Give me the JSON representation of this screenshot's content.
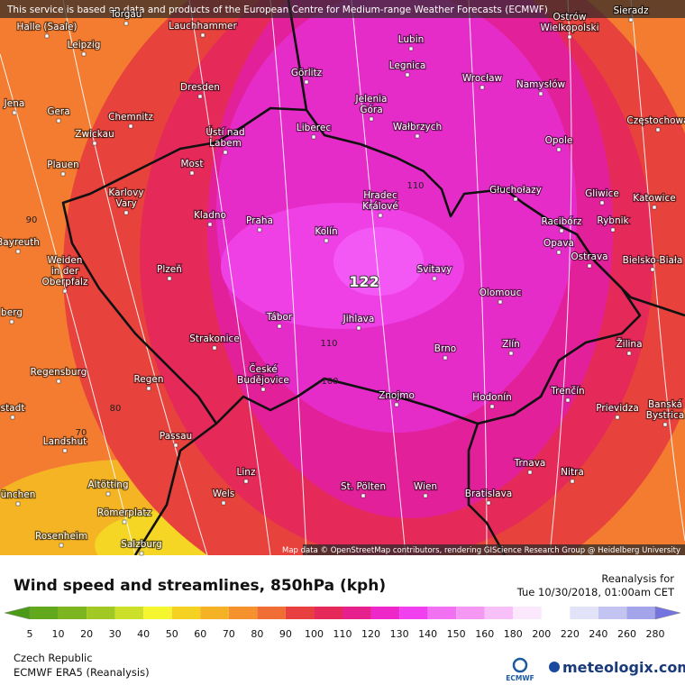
{
  "header": {
    "notice": "This service is based on data and products of the European Centre for Medium-range Weather Forecasts (ECMWF)"
  },
  "map": {
    "cities": [
      "Torgau",
      "Halle (Saale)",
      "Lauchhammer",
      "Lubin",
      [
        "Ostrów",
        "Wielkopolski"
      ],
      "Sieradz",
      "Leipzig",
      "Legnica",
      "Görlitz",
      "Wrocław",
      "Namysłów",
      "Dresden",
      "Jena",
      "Gera",
      "Chemnitz",
      [
        "Jelenia",
        "Góra"
      ],
      [
        "Ústí nad",
        "Labem"
      ],
      "Liberec",
      "Wałbrzych",
      "Częstochowa",
      "Zwickau",
      "Opole",
      "Plauen",
      "Most",
      [
        "Karlovy",
        "Vary"
      ],
      "Głuchołazy",
      "Gliwice",
      "Katowice",
      [
        "Hradec",
        "Králové"
      ],
      "Kladno",
      "Praha",
      "Racibórz",
      "Rybnik",
      "Kolín",
      "Opava",
      "Bayreuth",
      [
        "Weiden",
        "in der",
        "Oberpfalz"
      ],
      "Ostrava",
      "Bielsko-Biała",
      "Plzeň",
      "Svitavy",
      "Olomouc",
      "Tábor",
      "Jihlava",
      "berg",
      "Strakonice",
      "Zlín",
      "Žilina",
      "Brno",
      "Regensburg",
      [
        "České",
        "Budějovice"
      ],
      "Regen",
      "Znojmo",
      "Hodonín",
      "Trenčín",
      "Prievidza",
      [
        "Banská",
        "Bystrica"
      ],
      "stadt",
      "Landshut",
      "Passau",
      "Trnava",
      "Nitra",
      "Linz",
      "Altötting",
      "St. Pölten",
      "Wien",
      "Bratislava",
      "Wels",
      "ünchen",
      "Römerplatz",
      "Rosenheim",
      "Salzburg"
    ],
    "contour_labels": [
      122,
      110,
      110,
      100,
      90,
      80,
      70
    ],
    "attribution": "Map data © OpenStreetMap contributors, rendering GIScience Research Group @ Heidelberg University"
  },
  "footer": {
    "title": "Wind speed and streamlines, 850hPa (kph)",
    "valid_label": "Reanalysis for",
    "valid_time": "Tue 10/30/2018, 01:00am CET",
    "legend": {
      "ticks": [
        5,
        10,
        20,
        30,
        40,
        50,
        60,
        70,
        80,
        90,
        100,
        110,
        120,
        130,
        140,
        150,
        160,
        180,
        200,
        220,
        240,
        260,
        280
      ],
      "colors": [
        "#4a9a18",
        "#62a81c",
        "#7cb51f",
        "#a2c824",
        "#cce02a",
        "#f5f530",
        "#f5d222",
        "#f5b224",
        "#f5922e",
        "#f06e36",
        "#e84040",
        "#e52a5a",
        "#e6208c",
        "#ee28c8",
        "#f040f0",
        "#f270f2",
        "#f498f4",
        "#f8c0f8",
        "#fce8fc",
        "#ffffff",
        "#e2e2f8",
        "#c4c4f2",
        "#a4a4ea",
        "#7474e0"
      ]
    },
    "region": "Czech Republic",
    "model": "ECMWF ERA5 (Reanalysis)",
    "ecmwf_logo": "ECMWF",
    "brand": "meteologix.com"
  }
}
